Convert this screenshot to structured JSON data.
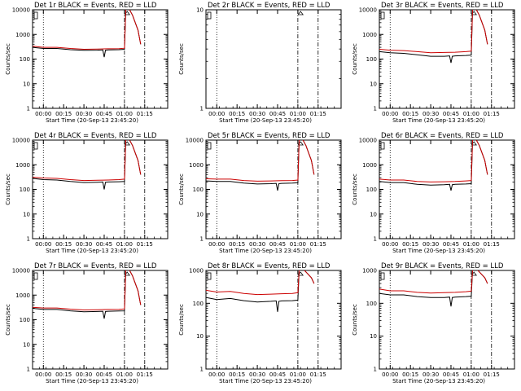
{
  "x_tick_labels": [
    "00:00",
    "00:15",
    "00:30",
    "00:45",
    "01:00",
    "01:15"
  ],
  "y_tick_labels_high": [
    "1",
    "10",
    "100",
    "1000",
    "10000"
  ],
  "y_tick_labels_low": [
    "1",
    "10"
  ],
  "ylabel": "Counts/sec",
  "xlabel": "Start Time (20-Sep-13 23:45:20)",
  "colors": {
    "events": "#000000",
    "lld": "#cc0000"
  },
  "chart_data": [
    {
      "type": "line",
      "title": "Det 1r BLACK = Events, RED = LLD",
      "ylog": true,
      "ylim": [
        1,
        10000
      ],
      "xlim": [
        -8,
        92
      ],
      "series": [
        {
          "x": [
            -8,
            0,
            10,
            20,
            30,
            40,
            44,
            45,
            46,
            48,
            56,
            60,
            61,
            62,
            63,
            66,
            70,
            72
          ],
          "y": [
            300,
            270,
            270,
            240,
            225,
            230,
            235,
            120,
            230,
            235,
            240,
            250,
            10000,
            14000,
            12000,
            6000,
            1500,
            400
          ]
        },
        {
          "x": [
            -8,
            0,
            10,
            20,
            30,
            40,
            48,
            56,
            60,
            61,
            62,
            63,
            66,
            70,
            72
          ],
          "y": [
            330,
            300,
            300,
            270,
            250,
            255,
            260,
            265,
            275,
            10000,
            14000,
            12000,
            6000,
            1500,
            400
          ]
        }
      ]
    },
    {
      "type": "line",
      "title": "Det 2r BLACK = Events, RED = LLD",
      "ylog": true,
      "ylim": [
        1,
        10
      ],
      "xlim": [
        -8,
        92
      ],
      "series": []
    },
    {
      "type": "line",
      "title": "Det 3r BLACK = Events, RED = LLD",
      "ylog": true,
      "ylim": [
        1,
        10000
      ],
      "xlim": [
        -8,
        92
      ],
      "series": [
        {
          "x": [
            -8,
            0,
            10,
            20,
            30,
            40,
            44,
            45,
            46,
            48,
            56,
            60,
            61,
            62,
            63,
            66,
            70,
            72
          ],
          "y": [
            200,
            180,
            170,
            150,
            130,
            130,
            135,
            70,
            130,
            135,
            140,
            145,
            10000,
            14000,
            12000,
            6000,
            1500,
            400
          ]
        },
        {
          "x": [
            -8,
            0,
            10,
            20,
            30,
            40,
            48,
            56,
            60,
            61,
            62,
            63,
            66,
            70,
            72
          ],
          "y": [
            250,
            230,
            220,
            200,
            180,
            185,
            190,
            200,
            210,
            10000,
            14000,
            12000,
            6000,
            1500,
            400
          ]
        }
      ]
    },
    {
      "type": "line",
      "title": "Det 4r BLACK = Events, RED = LLD",
      "ylog": true,
      "ylim": [
        1,
        10000
      ],
      "xlim": [
        -8,
        92
      ],
      "series": [
        {
          "x": [
            -8,
            0,
            10,
            20,
            30,
            40,
            44,
            45,
            46,
            48,
            56,
            60,
            61,
            62,
            63,
            66,
            70,
            72
          ],
          "y": [
            280,
            250,
            240,
            210,
            190,
            195,
            200,
            100,
            195,
            200,
            205,
            210,
            10000,
            14000,
            12000,
            6000,
            1500,
            400
          ]
        },
        {
          "x": [
            -8,
            0,
            10,
            20,
            30,
            40,
            48,
            56,
            60,
            61,
            62,
            63,
            66,
            70,
            72
          ],
          "y": [
            310,
            290,
            280,
            250,
            230,
            235,
            240,
            250,
            260,
            10000,
            14000,
            12000,
            6000,
            1500,
            400
          ]
        }
      ]
    },
    {
      "type": "line",
      "title": "Det 5r BLACK = Events, RED = LLD",
      "ylog": true,
      "ylim": [
        1,
        10000
      ],
      "xlim": [
        -8,
        92
      ],
      "series": [
        {
          "x": [
            -8,
            0,
            10,
            20,
            30,
            40,
            44,
            45,
            46,
            48,
            56,
            60,
            61,
            62,
            63,
            66,
            70,
            72
          ],
          "y": [
            220,
            210,
            210,
            180,
            165,
            170,
            175,
            90,
            170,
            175,
            180,
            185,
            10000,
            14000,
            12000,
            6000,
            1500,
            400
          ]
        },
        {
          "x": [
            -8,
            0,
            10,
            20,
            30,
            40,
            48,
            56,
            60,
            61,
            62,
            63,
            66,
            70,
            72
          ],
          "y": [
            270,
            260,
            260,
            230,
            215,
            220,
            225,
            230,
            240,
            10000,
            14000,
            12000,
            6000,
            1500,
            400
          ]
        }
      ]
    },
    {
      "type": "line",
      "title": "Det 6r BLACK = Events, RED = LLD",
      "ylog": true,
      "ylim": [
        1,
        10000
      ],
      "xlim": [
        -8,
        92
      ],
      "series": [
        {
          "x": [
            -8,
            0,
            10,
            20,
            30,
            40,
            44,
            45,
            46,
            48,
            56,
            60,
            61,
            62,
            63,
            66,
            70,
            72
          ],
          "y": [
            210,
            190,
            190,
            160,
            150,
            155,
            160,
            90,
            155,
            160,
            165,
            170,
            10000,
            14000,
            12000,
            6000,
            1500,
            400
          ]
        },
        {
          "x": [
            -8,
            0,
            10,
            20,
            30,
            40,
            48,
            56,
            60,
            61,
            62,
            63,
            66,
            70,
            72
          ],
          "y": [
            260,
            240,
            240,
            210,
            200,
            205,
            210,
            220,
            230,
            10000,
            14000,
            12000,
            6000,
            1500,
            400
          ]
        }
      ]
    },
    {
      "type": "line",
      "title": "Det 7r BLACK = Events, RED = LLD",
      "ylog": true,
      "ylim": [
        1,
        10000
      ],
      "xlim": [
        -8,
        92
      ],
      "series": [
        {
          "x": [
            -8,
            0,
            10,
            20,
            30,
            40,
            44,
            45,
            46,
            48,
            56,
            60,
            61,
            62,
            63,
            66,
            70,
            72
          ],
          "y": [
            290,
            260,
            260,
            230,
            210,
            215,
            220,
            110,
            215,
            220,
            225,
            230,
            10000,
            14000,
            12000,
            6000,
            1500,
            400
          ]
        },
        {
          "x": [
            -8,
            0,
            10,
            20,
            30,
            40,
            48,
            56,
            60,
            61,
            62,
            63,
            66,
            70,
            72
          ],
          "y": [
            320,
            300,
            300,
            270,
            250,
            255,
            260,
            265,
            275,
            10000,
            14000,
            12000,
            6000,
            1500,
            400
          ]
        }
      ]
    },
    {
      "type": "line",
      "title": "Det 8r BLACK = Events, RED = LLD",
      "ylog": true,
      "ylim": [
        1,
        1000
      ],
      "xlim": [
        -8,
        92
      ],
      "series": [
        {
          "x": [
            -8,
            0,
            10,
            20,
            30,
            40,
            44,
            45,
            46,
            48,
            56,
            60,
            61,
            62,
            63,
            66,
            70,
            72
          ],
          "y": [
            150,
            130,
            140,
            120,
            110,
            115,
            118,
            55,
            115,
            118,
            120,
            125,
            1000,
            1400,
            1200,
            900,
            600,
            400
          ]
        },
        {
          "x": [
            -8,
            0,
            10,
            20,
            30,
            40,
            48,
            56,
            60,
            61,
            62,
            63,
            66,
            70,
            72
          ],
          "y": [
            250,
            220,
            230,
            200,
            185,
            190,
            195,
            200,
            210,
            1000,
            1400,
            1200,
            900,
            600,
            400
          ]
        }
      ]
    },
    {
      "type": "line",
      "title": "Det 9r BLACK = Events, RED = LLD",
      "ylog": true,
      "ylim": [
        1,
        1000
      ],
      "xlim": [
        -8,
        92
      ],
      "series": [
        {
          "x": [
            -8,
            0,
            10,
            20,
            30,
            40,
            44,
            45,
            46,
            48,
            56,
            60,
            61,
            62,
            63,
            66,
            70,
            72
          ],
          "y": [
            200,
            180,
            180,
            160,
            150,
            150,
            155,
            80,
            150,
            155,
            160,
            165,
            1000,
            1400,
            1200,
            900,
            600,
            400
          ]
        },
        {
          "x": [
            -8,
            0,
            10,
            20,
            30,
            40,
            48,
            56,
            60,
            61,
            62,
            63,
            66,
            70,
            72
          ],
          "y": [
            270,
            240,
            240,
            215,
            205,
            210,
            215,
            225,
            235,
            1000,
            1400,
            1200,
            900,
            600,
            400
          ]
        }
      ]
    }
  ]
}
